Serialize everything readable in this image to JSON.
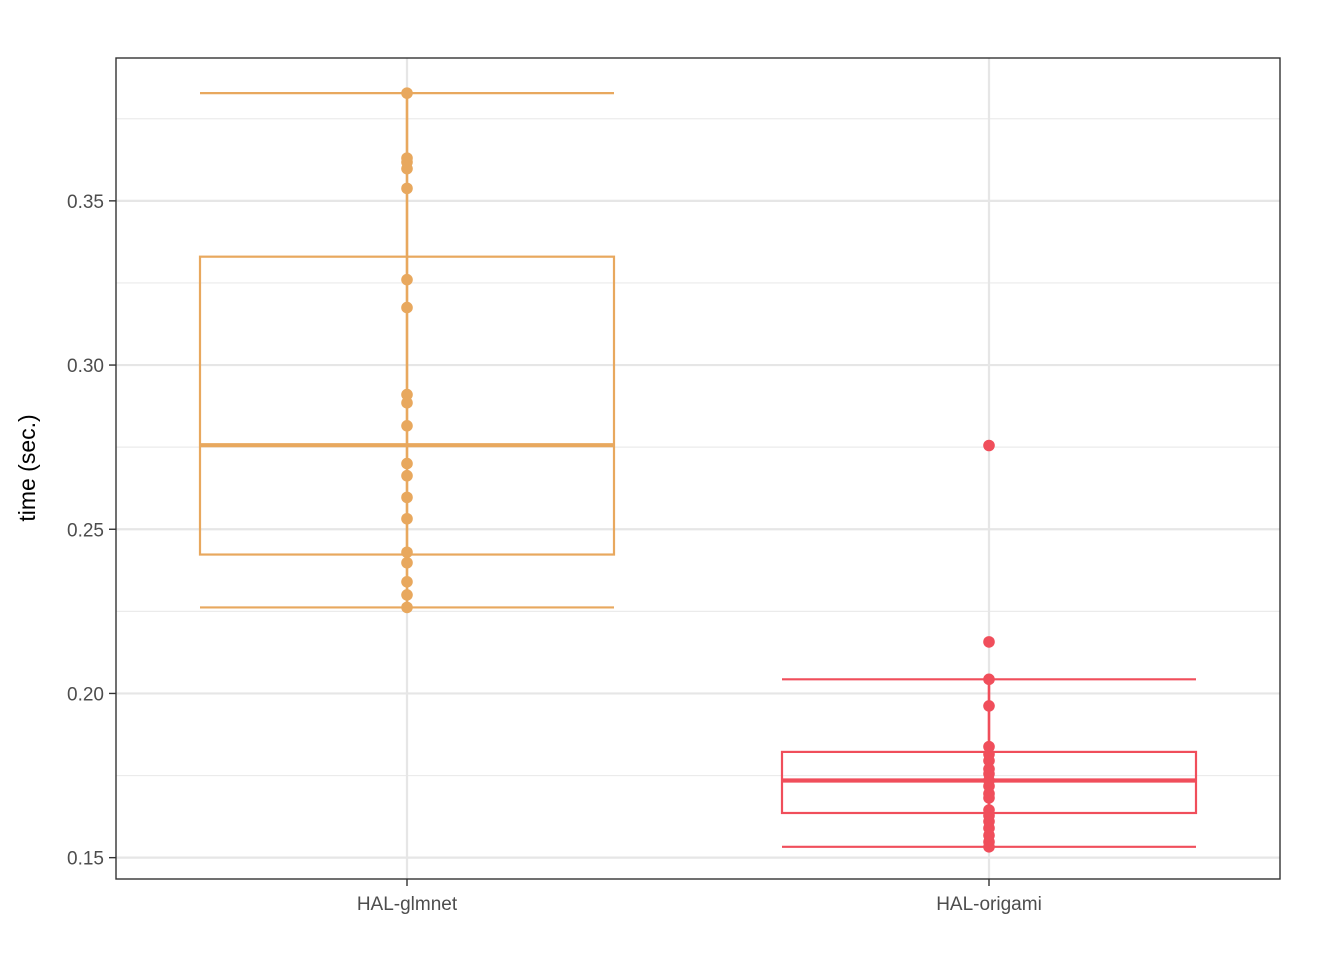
{
  "chart_data": {
    "type": "boxplot",
    "xlabel": "",
    "ylabel": "time (sec.)",
    "ylim": [
      0.1435,
      0.3935
    ],
    "y_ticks": [
      0.15,
      0.2,
      0.25,
      0.3,
      0.35
    ],
    "y_tick_labels": [
      "0.15",
      "0.20",
      "0.25",
      "0.30",
      "0.35"
    ],
    "grid": true,
    "categories": [
      "HAL-glmnet",
      "HAL-origami"
    ],
    "series": [
      {
        "category": "HAL-glmnet",
        "color": "#E8A85E",
        "box": {
          "lower_whisker": 0.2262,
          "q1": 0.2423,
          "median": 0.2756,
          "q3": 0.333,
          "upper_whisker": 0.3828
        },
        "points": [
          0.3828,
          0.363,
          0.3618,
          0.3598,
          0.3538,
          0.326,
          0.3175,
          0.291,
          0.2885,
          0.2815,
          0.27,
          0.2663,
          0.2597,
          0.2532,
          0.243,
          0.2398,
          0.234,
          0.23,
          0.2262
        ]
      },
      {
        "category": "HAL-origami",
        "color": "#F04E5B",
        "box": {
          "lower_whisker": 0.1533,
          "q1": 0.1636,
          "median": 0.1735,
          "q3": 0.1822,
          "upper_whisker": 0.2043
        },
        "points": [
          0.2755,
          0.2157,
          0.2043,
          0.1962,
          0.1838,
          0.1815,
          0.1795,
          0.177,
          0.1755,
          0.1735,
          0.1718,
          0.1695,
          0.1682,
          0.1645,
          0.1628,
          0.161,
          0.159,
          0.1568,
          0.1548,
          0.1533
        ]
      }
    ]
  }
}
